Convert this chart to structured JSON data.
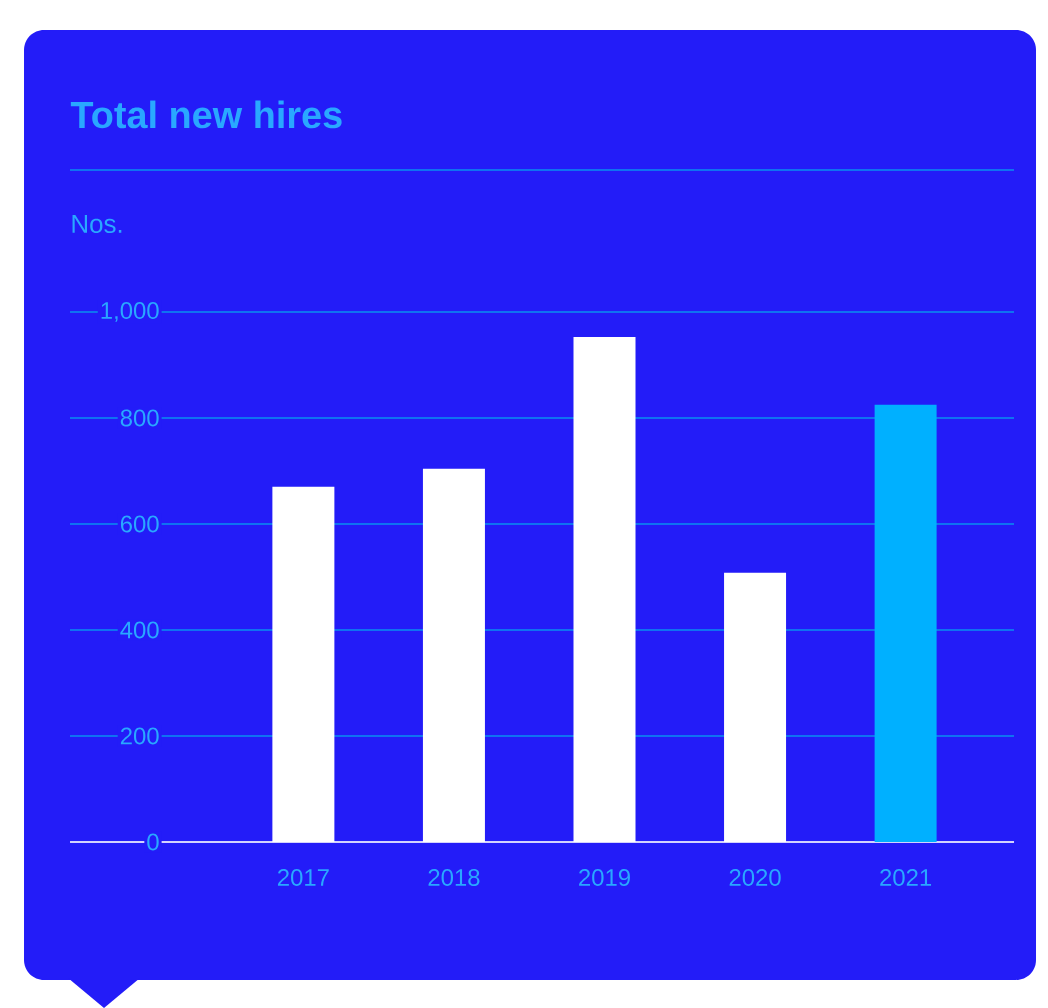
{
  "chart_data": {
    "type": "bar",
    "title": "Total new hires",
    "ylabel": "Nos.",
    "categories": [
      "2017",
      "2018",
      "2019",
      "2020",
      "2021"
    ],
    "values": [
      670,
      704,
      953,
      508,
      825
    ],
    "colors": [
      "#ffffff",
      "#ffffff",
      "#ffffff",
      "#ffffff",
      "#00b0ff"
    ],
    "ylim": [
      0,
      1000
    ],
    "yticks": [
      0,
      200,
      400,
      600,
      800,
      {
        "value": 1000,
        "label": "1,000"
      }
    ],
    "grid": "y"
  }
}
